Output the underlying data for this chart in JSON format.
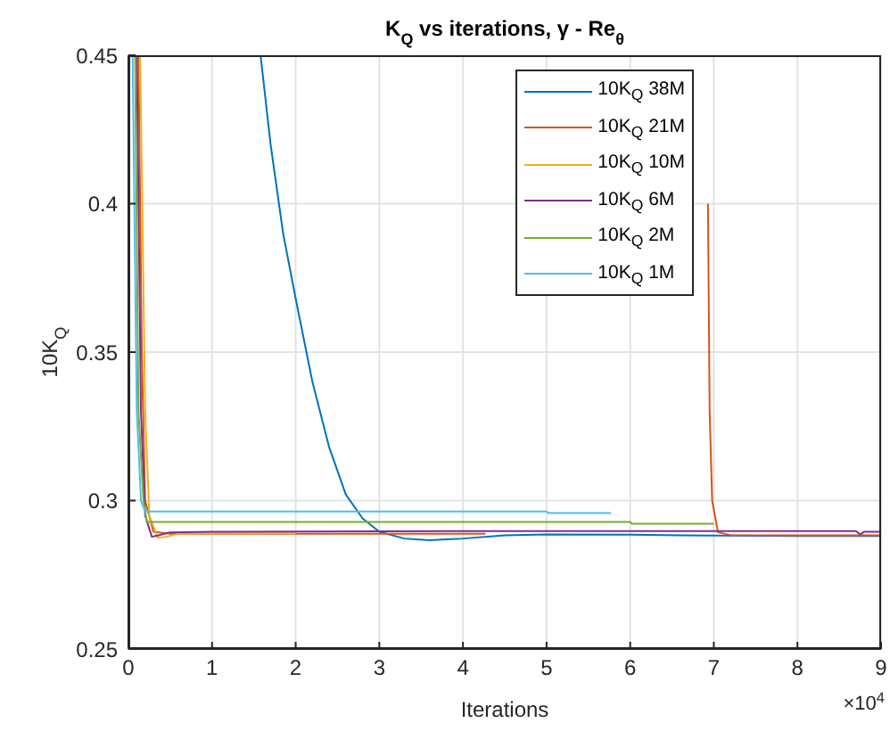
{
  "chart_data": {
    "type": "line",
    "title": "K$_{Q}$ vs iterations, γ - Re$_{θ}$",
    "xlabel": "Iterations",
    "ylabel": "10K$_{Q}$",
    "annotations": [
      "×10$^{4}$"
    ],
    "xlim": [
      0,
      9
    ],
    "xticks": [
      0,
      1,
      2,
      3,
      4,
      5,
      6,
      7,
      8,
      9
    ],
    "ylim": [
      0.25,
      0.45
    ],
    "yticks": [
      0.25,
      0.3,
      0.35,
      0.4,
      0.45
    ],
    "grid": true,
    "legend": "top right",
    "marker": "none",
    "line_style": "solid",
    "series": [
      {
        "name": "10K$_{Q}$ 38M",
        "color": "#0072bd",
        "x": [
          1.58,
          1.7,
          1.85,
          2.0,
          2.2,
          2.4,
          2.6,
          2.8,
          3.0,
          3.3,
          3.6,
          4.0,
          4.5,
          5,
          6,
          7,
          8,
          9
        ],
        "values": [
          0.45,
          0.42,
          0.39,
          0.368,
          0.34,
          0.318,
          0.302,
          0.294,
          0.2895,
          0.2872,
          0.2866,
          0.2872,
          0.2883,
          0.2886,
          0.2885,
          0.2882,
          0.2881,
          0.2881
        ]
      },
      {
        "name": "10K$_{Q}$ 21M",
        "color": "#d95319",
        "x": [
          0.12,
          0.16,
          0.2,
          0.3,
          0.5,
          2,
          4.27,
          5.5,
          6.93,
          6.95,
          6.98,
          7.05,
          7.2,
          8,
          9
        ],
        "values": [
          0.45,
          0.35,
          0.3,
          0.2895,
          0.2888,
          0.2888,
          0.2888,
          null,
          0.4,
          0.33,
          0.3,
          0.2893,
          0.2884,
          0.2883,
          0.2883
        ]
      },
      {
        "name": "10K$_{Q}$ 10M",
        "color": "#edb120",
        "x": [
          0.14,
          0.2,
          0.25,
          0.35,
          0.45,
          0.6,
          1,
          2
        ],
        "values": [
          0.45,
          0.33,
          0.295,
          0.2875,
          0.2878,
          0.2888,
          0.289,
          0.289
        ]
      },
      {
        "name": "10K$_{Q}$ 6M",
        "color": "#7e2f8e",
        "x": [
          0.1,
          0.15,
          0.2,
          0.28,
          0.35,
          0.5,
          1,
          4,
          8.7,
          8.75,
          8.8,
          9
        ],
        "values": [
          0.45,
          0.33,
          0.295,
          0.2878,
          0.2882,
          0.2893,
          0.2895,
          0.2897,
          0.2897,
          0.2886,
          0.2895,
          0.2895
        ]
      },
      {
        "name": "10K$_{Q}$ 2M",
        "color": "#77ac30",
        "x": [
          0.08,
          0.12,
          0.18,
          0.22,
          6,
          6.02,
          7
        ],
        "values": [
          0.45,
          0.33,
          0.3,
          0.2928,
          0.2928,
          0.2922,
          0.2922
        ]
      },
      {
        "name": "10K$_{Q}$ 1M",
        "color": "#4dbeee",
        "x": [
          0.05,
          0.1,
          0.15,
          0.2,
          5,
          5.02,
          5.77
        ],
        "values": [
          0.45,
          0.33,
          0.3,
          0.2963,
          0.2963,
          0.2958,
          0.2958
        ]
      }
    ]
  }
}
